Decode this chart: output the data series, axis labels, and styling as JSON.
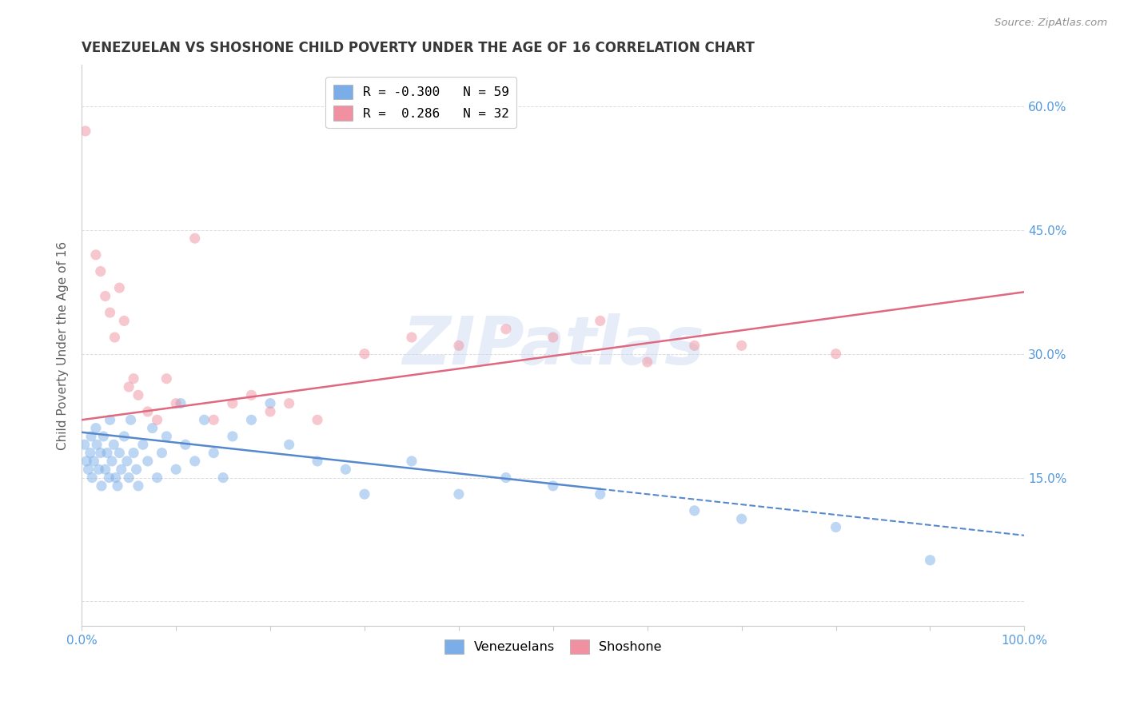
{
  "title": "VENEZUELAN VS SHOSHONE CHILD POVERTY UNDER THE AGE OF 16 CORRELATION CHART",
  "source": "Source: ZipAtlas.com",
  "ylabel": "Child Poverty Under the Age of 16",
  "xlim": [
    0,
    100
  ],
  "ylim": [
    -3,
    65
  ],
  "xticks": [
    0,
    10,
    20,
    30,
    40,
    50,
    60,
    70,
    80,
    90,
    100
  ],
  "xticklabels": [
    "0.0%",
    "",
    "",
    "",
    "",
    "",
    "",
    "",
    "",
    "",
    "100.0%"
  ],
  "yticks": [
    0,
    15,
    30,
    45,
    60
  ],
  "yticklabels": [
    "",
    "15.0%",
    "30.0%",
    "45.0%",
    "60.0%"
  ],
  "legend_entries": [
    {
      "label": "R = -0.300   N = 59",
      "color": "#aac8f0"
    },
    {
      "label": "R =  0.286   N = 32",
      "color": "#f4a8b8"
    }
  ],
  "venezuelan_color": "#7baee8",
  "shoshone_color": "#f090a0",
  "venezuelan_line_color": "#5588cc",
  "shoshone_line_color": "#e06880",
  "watermark": "ZIPatlas",
  "venezuelan_points": [
    [
      0.3,
      19
    ],
    [
      0.5,
      17
    ],
    [
      0.7,
      16
    ],
    [
      0.9,
      18
    ],
    [
      1.0,
      20
    ],
    [
      1.1,
      15
    ],
    [
      1.3,
      17
    ],
    [
      1.5,
      21
    ],
    [
      1.6,
      19
    ],
    [
      1.8,
      16
    ],
    [
      2.0,
      18
    ],
    [
      2.1,
      14
    ],
    [
      2.3,
      20
    ],
    [
      2.5,
      16
    ],
    [
      2.7,
      18
    ],
    [
      2.9,
      15
    ],
    [
      3.0,
      22
    ],
    [
      3.2,
      17
    ],
    [
      3.4,
      19
    ],
    [
      3.6,
      15
    ],
    [
      3.8,
      14
    ],
    [
      4.0,
      18
    ],
    [
      4.2,
      16
    ],
    [
      4.5,
      20
    ],
    [
      4.8,
      17
    ],
    [
      5.0,
      15
    ],
    [
      5.2,
      22
    ],
    [
      5.5,
      18
    ],
    [
      5.8,
      16
    ],
    [
      6.0,
      14
    ],
    [
      6.5,
      19
    ],
    [
      7.0,
      17
    ],
    [
      7.5,
      21
    ],
    [
      8.0,
      15
    ],
    [
      8.5,
      18
    ],
    [
      9.0,
      20
    ],
    [
      10.0,
      16
    ],
    [
      10.5,
      24
    ],
    [
      11.0,
      19
    ],
    [
      12.0,
      17
    ],
    [
      13.0,
      22
    ],
    [
      14.0,
      18
    ],
    [
      15.0,
      15
    ],
    [
      16.0,
      20
    ],
    [
      18.0,
      22
    ],
    [
      20.0,
      24
    ],
    [
      22.0,
      19
    ],
    [
      25.0,
      17
    ],
    [
      28.0,
      16
    ],
    [
      30.0,
      13
    ],
    [
      35.0,
      17
    ],
    [
      40.0,
      13
    ],
    [
      45.0,
      15
    ],
    [
      50.0,
      14
    ],
    [
      55.0,
      13
    ],
    [
      65.0,
      11
    ],
    [
      70.0,
      10
    ],
    [
      80.0,
      9
    ],
    [
      90.0,
      5
    ]
  ],
  "shoshone_points": [
    [
      0.4,
      57
    ],
    [
      1.5,
      42
    ],
    [
      2.0,
      40
    ],
    [
      2.5,
      37
    ],
    [
      3.0,
      35
    ],
    [
      3.5,
      32
    ],
    [
      4.0,
      38
    ],
    [
      4.5,
      34
    ],
    [
      5.0,
      26
    ],
    [
      5.5,
      27
    ],
    [
      6.0,
      25
    ],
    [
      7.0,
      23
    ],
    [
      8.0,
      22
    ],
    [
      9.0,
      27
    ],
    [
      10.0,
      24
    ],
    [
      12.0,
      44
    ],
    [
      14.0,
      22
    ],
    [
      16.0,
      24
    ],
    [
      18.0,
      25
    ],
    [
      20.0,
      23
    ],
    [
      22.0,
      24
    ],
    [
      25.0,
      22
    ],
    [
      30.0,
      30
    ],
    [
      35.0,
      32
    ],
    [
      40.0,
      31
    ],
    [
      45.0,
      33
    ],
    [
      50.0,
      32
    ],
    [
      55.0,
      34
    ],
    [
      60.0,
      29
    ],
    [
      65.0,
      31
    ],
    [
      70.0,
      31
    ],
    [
      80.0,
      30
    ]
  ],
  "ven_line_x0": 0,
  "ven_line_y0": 20.5,
  "ven_line_x1": 100,
  "ven_line_y1": 8.0,
  "ven_solid_end": 55,
  "sho_line_x0": 0,
  "sho_line_y0": 22.0,
  "sho_line_x1": 100,
  "sho_line_y1": 37.5,
  "background_color": "#ffffff",
  "grid_color": "#dddddd",
  "title_color": "#383838",
  "axis_label_color": "#606060",
  "tick_color": "#5599dd"
}
